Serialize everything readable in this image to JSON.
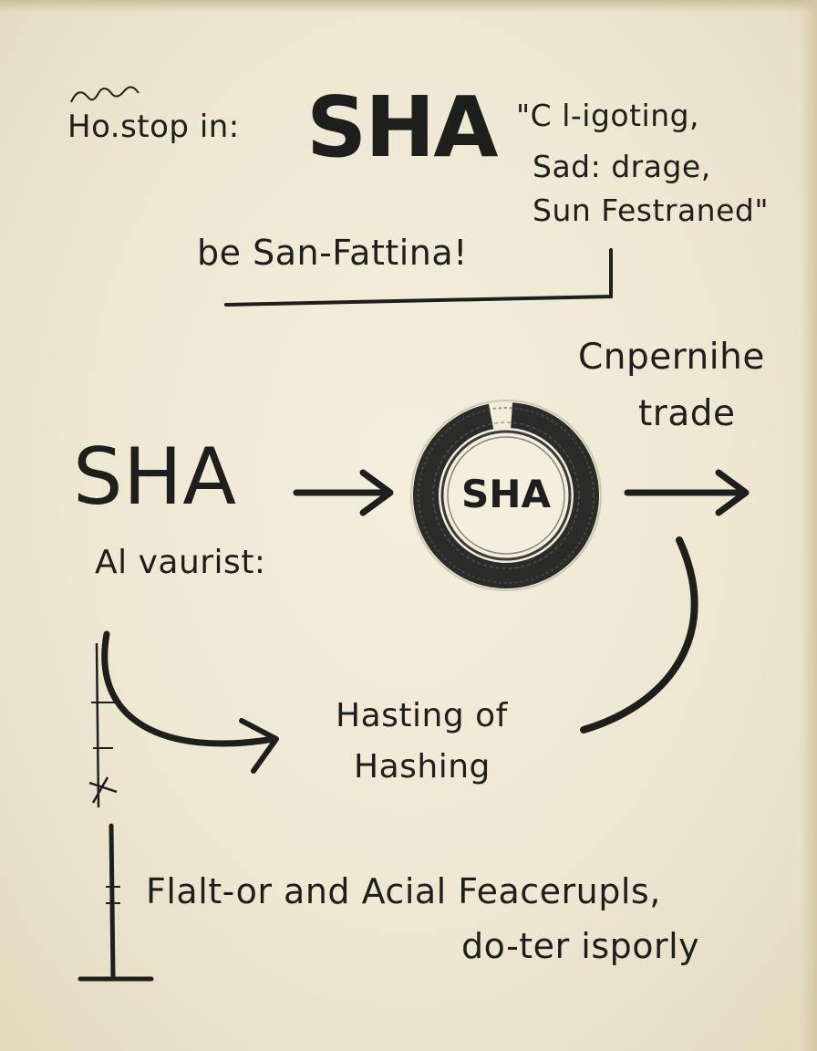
{
  "header": {
    "left_note": "Ho.stop in:",
    "title": "SHA",
    "quote_line1": "\"C l-igoting,",
    "quote_line2": "Sad: drage,",
    "quote_line3": "Sun Festraned\"",
    "underline_text": "be San-Fattina!"
  },
  "flow": {
    "left_label": "SHA",
    "left_sublabel": "Al vaurist:",
    "circle_label": "SHA",
    "right_label_line1": "Cnpernihe",
    "right_label_line2": "trade",
    "bottom_label_line1": "Hasting of",
    "bottom_label_line2": "Hashing"
  },
  "footer": {
    "line1": "Flalt-or and Acial Feacerupls,",
    "line2": "do-ter isporly"
  },
  "colors": {
    "ink": "#1e1e1c",
    "paper": "#f0ead6"
  }
}
